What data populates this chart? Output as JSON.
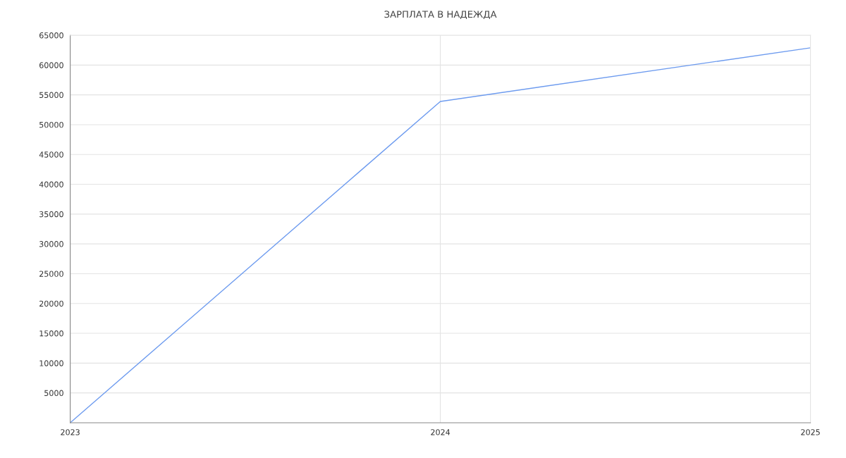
{
  "chart_data": {
    "type": "line",
    "title": "ЗАРПЛАТА В НАДЕЖДА",
    "x": [
      2023,
      2024,
      2025
    ],
    "series": [
      {
        "color": "#6d9bef",
        "values": [
          0,
          53900,
          62900
        ]
      }
    ],
    "xlim": [
      2023,
      2025
    ],
    "xticks": [
      2023,
      2024,
      2025
    ],
    "ylim": [
      0,
      65000
    ],
    "yticks": [
      5000,
      10000,
      15000,
      20000,
      25000,
      30000,
      35000,
      40000,
      45000,
      50000,
      55000,
      60000,
      65000
    ],
    "grid": true,
    "marker": "none",
    "line_style": "solid"
  }
}
